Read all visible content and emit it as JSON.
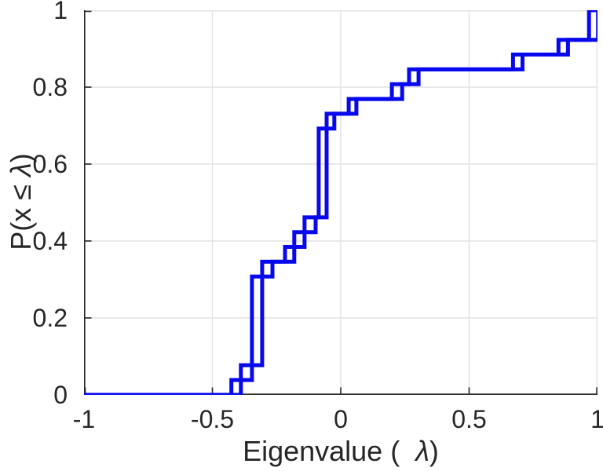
{
  "figure": {
    "background": "#ffffff",
    "xlabel": {
      "pre": "Eigenvalue (  ",
      "lambda": "λ",
      "post": ")"
    },
    "ylabel": {
      "pre": "P(x ≤ ",
      "lambda": "λ",
      "post": ")"
    }
  },
  "chart_data": {
    "type": "line",
    "subtype": "empirical-cdf-stairs",
    "title": "",
    "xlabel": "Eigenvalue (  λ)",
    "ylabel": "P(x ≤ λ)",
    "xlim": [
      -1,
      1
    ],
    "ylim": [
      0,
      1
    ],
    "x_ticks": [
      -1,
      -0.5,
      0,
      0.5,
      1
    ],
    "x_tick_labels": [
      "-1",
      "-0.5",
      "0",
      "0.5",
      "1"
    ],
    "y_ticks": [
      0,
      0.2,
      0.4,
      0.6,
      0.8,
      1
    ],
    "y_tick_labels": [
      "0",
      "0.2",
      "0.4",
      "0.6",
      "0.8",
      "1"
    ],
    "grid": true,
    "legend": false,
    "line_color": "#0808EE",
    "axis_color": "#262626",
    "grid_color": "#E2E2E2",
    "line_width": 5,
    "series": [
      {
        "name": "ecdf-curve-1",
        "steps": [
          [
            -0.426,
            0.0385
          ],
          [
            -0.389,
            0.0769
          ],
          [
            -0.346,
            0.3077
          ],
          [
            -0.306,
            0.3462
          ],
          [
            -0.217,
            0.3846
          ],
          [
            -0.181,
            0.4231
          ],
          [
            -0.141,
            0.4615
          ],
          [
            -0.086,
            0.6923
          ],
          [
            -0.055,
            0.7308
          ],
          [
            0.031,
            0.7692
          ],
          [
            0.199,
            0.8077
          ],
          [
            0.266,
            0.8462
          ],
          [
            0.671,
            0.8846
          ],
          [
            0.848,
            0.9231
          ],
          [
            0.967,
            1.0
          ]
        ]
      },
      {
        "name": "ecdf-curve-2",
        "steps": [
          [
            -0.389,
            0.0385
          ],
          [
            -0.346,
            0.0769
          ],
          [
            -0.306,
            0.3077
          ],
          [
            -0.266,
            0.3462
          ],
          [
            -0.181,
            0.3846
          ],
          [
            -0.141,
            0.4231
          ],
          [
            -0.098,
            0.4615
          ],
          [
            -0.055,
            0.6923
          ],
          [
            -0.025,
            0.7308
          ],
          [
            0.061,
            0.7692
          ],
          [
            0.239,
            0.8077
          ],
          [
            0.303,
            0.8462
          ],
          [
            0.708,
            0.8846
          ],
          [
            0.885,
            0.9231
          ],
          [
            1.002,
            1.0
          ]
        ]
      }
    ]
  }
}
